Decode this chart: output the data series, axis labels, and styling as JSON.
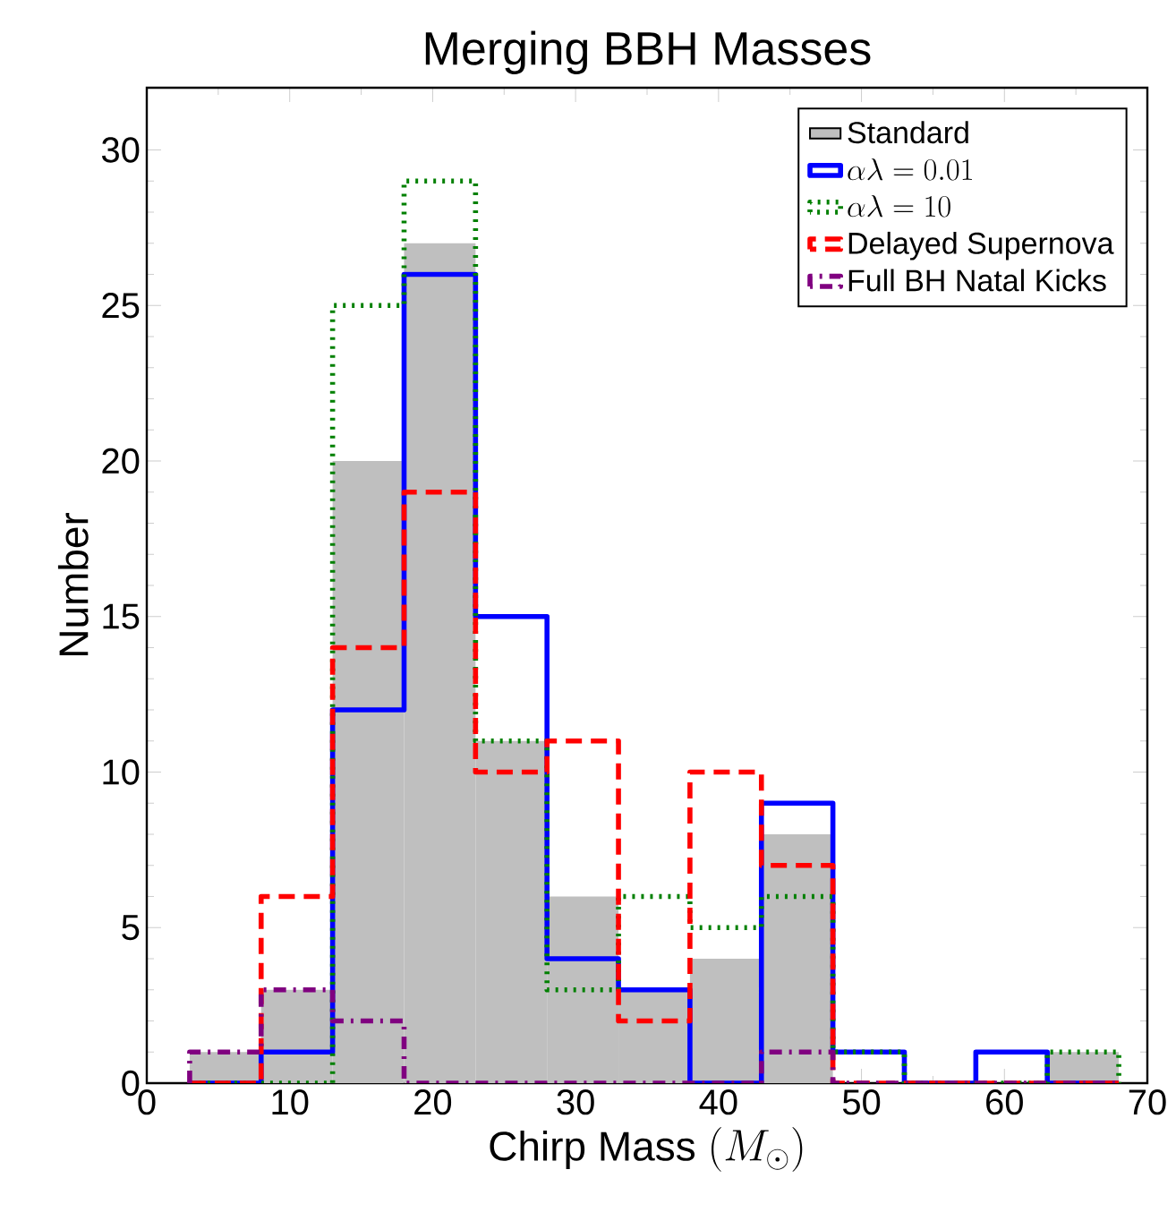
{
  "chart_data": {
    "type": "histogram",
    "title": "Merging BBH Masses",
    "xlabel": "\\mbox{Chirp Mass }(M_\\odot)",
    "ylabel": "Number",
    "bins": [
      3,
      8,
      13,
      18,
      23,
      28,
      33,
      38,
      43,
      48,
      53,
      58,
      63,
      68
    ],
    "series": [
      {
        "name": "Standard",
        "color": "#bfbfbf",
        "values": [
          1,
          3,
          20,
          27,
          11,
          6,
          3,
          4,
          8,
          0,
          0,
          0,
          1
        ]
      },
      {
        "name": "\\alpha\\lambda = 0.01",
        "color": "#0000ff",
        "line_style": "solid",
        "values": [
          0,
          1,
          12,
          26,
          15,
          4,
          3,
          0,
          9,
          1,
          0,
          1,
          0
        ]
      },
      {
        "name": "\\alpha\\lambda = 10",
        "color": "#008000",
        "line_style": "dotted",
        "values": [
          0,
          0,
          25,
          29,
          11,
          3,
          6,
          5,
          6,
          1,
          0,
          0,
          1
        ]
      },
      {
        "name": "Delayed Supernova",
        "color": "#ff0000",
        "line_style": "dashed",
        "values": [
          0,
          6,
          14,
          19,
          10,
          11,
          2,
          10,
          7,
          0,
          0,
          0,
          0
        ]
      },
      {
        "name": "Full BH Natal Kicks",
        "color": "#800080",
        "line_style": "dashdot",
        "values": [
          1,
          3,
          2,
          0,
          0,
          0,
          0,
          0,
          1,
          0,
          0,
          0,
          0
        ]
      }
    ],
    "xlim": [
      0,
      70
    ],
    "xticks": [
      0,
      10,
      20,
      30,
      40,
      50,
      60,
      70
    ],
    "ylim": [
      0,
      32
    ],
    "yticks": [
      0,
      5,
      10,
      15,
      20,
      25,
      30
    ],
    "grid": false,
    "legend": "top right"
  }
}
